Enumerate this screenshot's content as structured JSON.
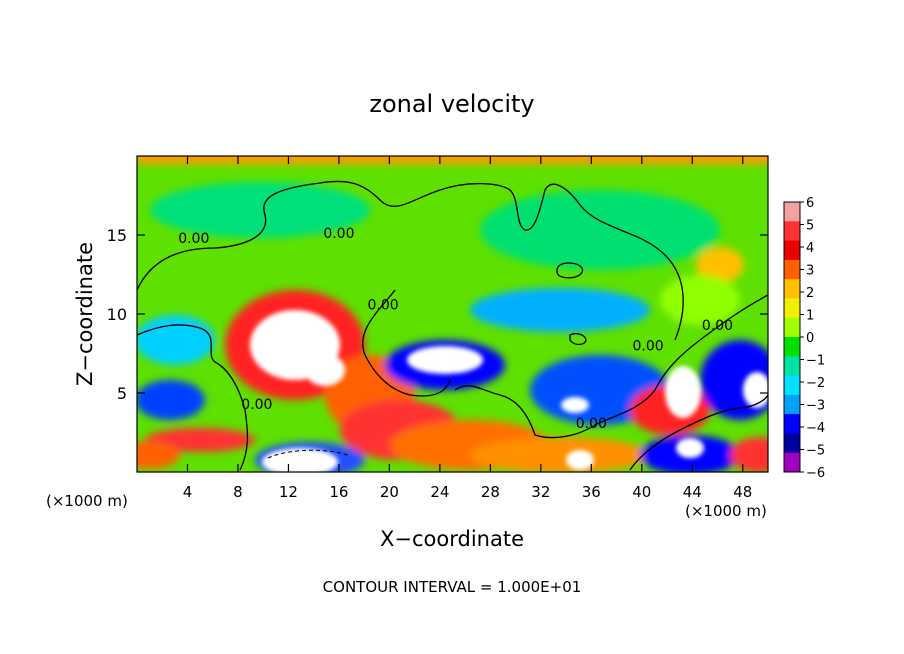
{
  "chart_data": {
    "type": "heatmap",
    "title": "zonal velocity",
    "xlabel": "X−coordinate",
    "ylabel": "Z−coordinate",
    "x_unit_left": "(×1000 m)",
    "x_unit_right": "(×1000 m)",
    "xlim": [
      0,
      50
    ],
    "ylim": [
      0,
      20
    ],
    "x_ticks": [
      4,
      8,
      12,
      16,
      20,
      24,
      28,
      32,
      36,
      40,
      44,
      48
    ],
    "y_ticks": [
      5,
      10,
      15
    ],
    "grid": false,
    "colorbar": {
      "placement": "right",
      "ticks": [
        6,
        5,
        4,
        3,
        2,
        1,
        0,
        -1,
        -2,
        -3,
        -4,
        -5,
        -6
      ],
      "tick_labels": [
        "6",
        "5",
        "4",
        "3",
        "2",
        "1",
        "0",
        "−1",
        "−2",
        "−3",
        "−4",
        "−5",
        "−6"
      ],
      "colors": [
        "#f4a0a0",
        "#ff3030",
        "#e80000",
        "#ff6000",
        "#ffc000",
        "#f0f000",
        "#a0ff00",
        "#00e000",
        "#00e0a0",
        "#00e0ff",
        "#00a0ff",
        "#0000ff",
        "#0000a0",
        "#a000c0"
      ]
    },
    "contour_labels": [
      {
        "text": "0.00",
        "x": 4.5,
        "z": 14.5
      },
      {
        "text": "0.00",
        "x": 16.0,
        "z": 14.8
      },
      {
        "text": "0.00",
        "x": 19.5,
        "z": 10.3
      },
      {
        "text": "0.00",
        "x": 9.5,
        "z": 4.0
      },
      {
        "text": "0.00",
        "x": 40.5,
        "z": 7.7
      },
      {
        "text": "0.00",
        "x": 46.0,
        "z": 9.0
      },
      {
        "text": "0.00",
        "x": 36.0,
        "z": 2.8
      }
    ],
    "footer": "CONTOUR INTERVAL = 1.000E+01"
  }
}
